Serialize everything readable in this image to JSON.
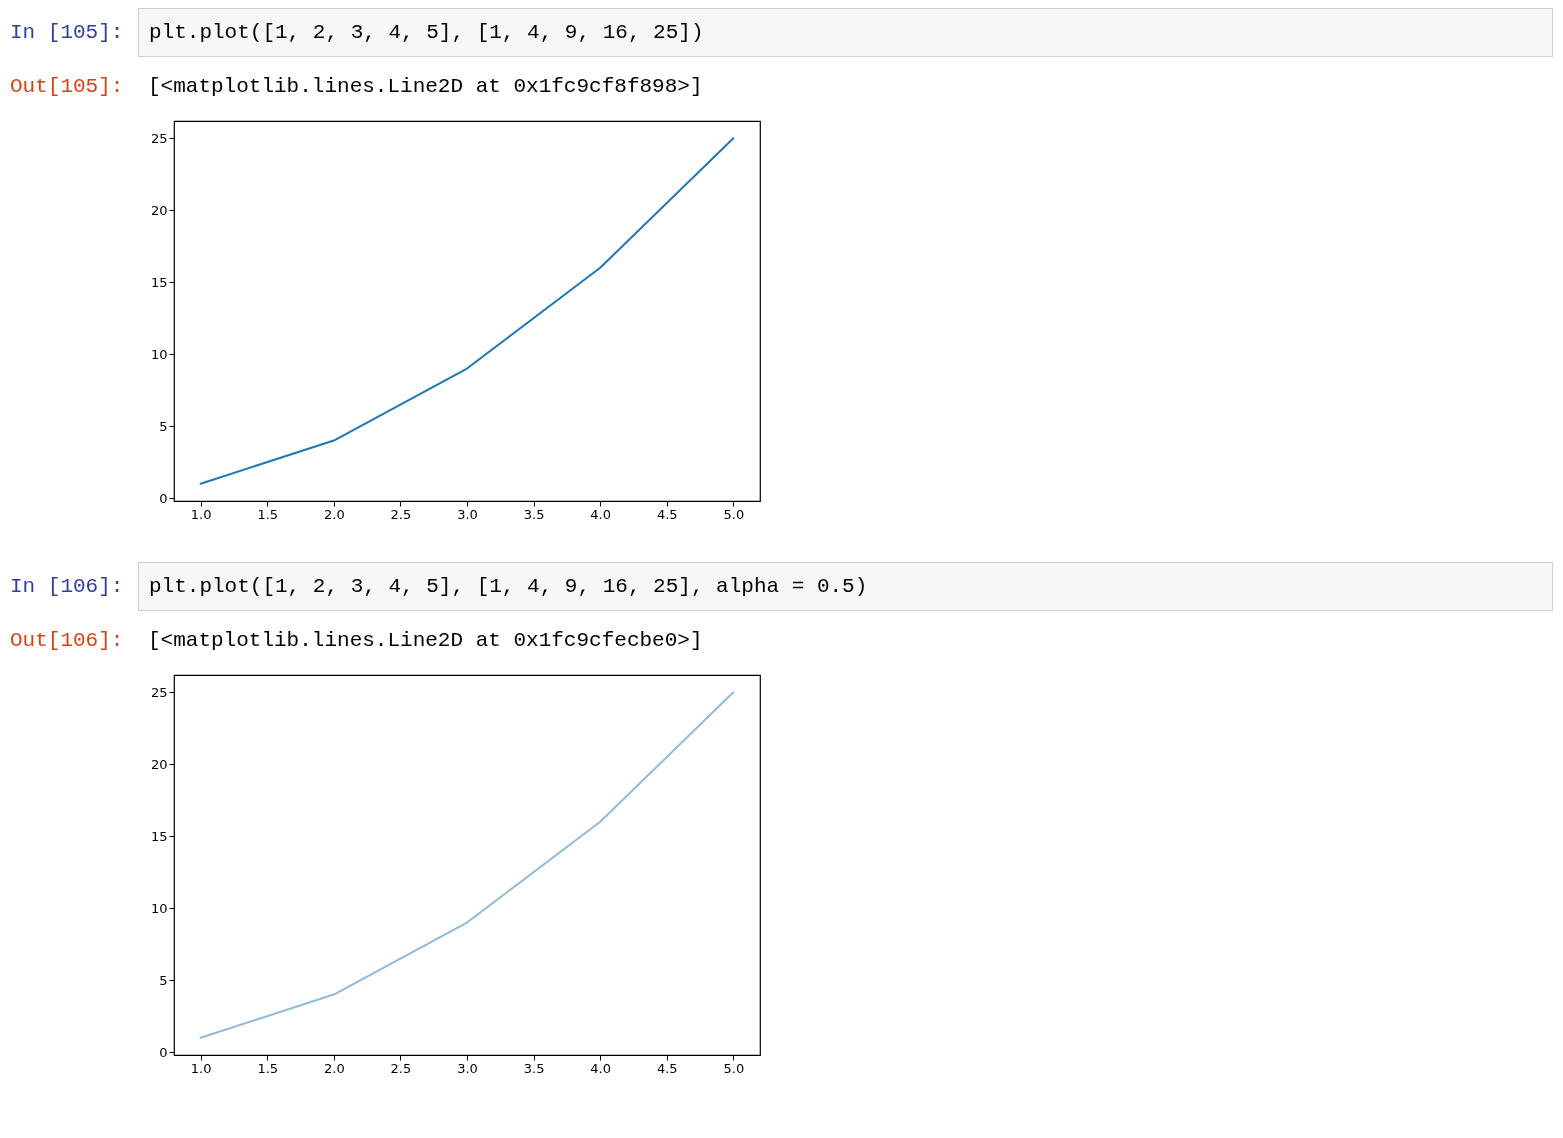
{
  "chart_data": [
    {
      "type": "line",
      "annotations": [
        "In [105]:",
        "plt.plot([1, 2, 3, 4, 5], [1, 4, 9, 16, 25])",
        "Out[105]:",
        "[<matplotlib.lines.Line2D at 0x1fc9cf8f898>]"
      ],
      "x": [
        1,
        2,
        3,
        4,
        5
      ],
      "series": [
        {
          "color": "#1f77b4",
          "values": [
            1,
            4,
            9,
            16,
            25
          ]
        }
      ],
      "xlim": [
        0.8,
        5.2
      ],
      "ylim": [
        -0.2,
        26.2
      ],
      "xticks": [
        {
          "value": 1,
          "label": "1.0"
        },
        {
          "value": 1.5,
          "label": "1.5"
        },
        {
          "value": 2,
          "label": "2.0"
        },
        {
          "value": 2.5,
          "label": "2.5"
        },
        {
          "value": 3,
          "label": "3.0"
        },
        {
          "value": 3.5,
          "label": "3.5"
        },
        {
          "value": 4,
          "label": "4.0"
        },
        {
          "value": 4.5,
          "label": "4.5"
        },
        {
          "value": 5,
          "label": "5.0"
        }
      ],
      "yticks": [
        0,
        5,
        10,
        15,
        20,
        25
      ],
      "grid": false,
      "marker": "none",
      "line_style": "solid"
    },
    {
      "type": "line",
      "annotations": [
        "In [106]:",
        "plt.plot([1, 2, 3, 4, 5], [1, 4, 9, 16, 25], alpha = 0.5)",
        "Out[106]:",
        "[<matplotlib.lines.Line2D at 0x1fc9cfecbe0>]"
      ],
      "x": [
        1,
        2,
        3,
        4,
        5
      ],
      "series": [
        {
          "color": "#8fbbd9",
          "values": [
            1,
            4,
            9,
            16,
            25
          ]
        }
      ],
      "xlim": [
        0.8,
        5.2
      ],
      "ylim": [
        -0.2,
        26.2
      ],
      "xticks": [
        {
          "value": 1,
          "label": "1.0"
        },
        {
          "value": 1.5,
          "label": "1.5"
        },
        {
          "value": 2,
          "label": "2.0"
        },
        {
          "value": 2.5,
          "label": "2.5"
        },
        {
          "value": 3,
          "label": "3.0"
        },
        {
          "value": 3.5,
          "label": "3.5"
        },
        {
          "value": 4,
          "label": "4.0"
        },
        {
          "value": 4.5,
          "label": "4.5"
        },
        {
          "value": 5,
          "label": "5.0"
        }
      ],
      "yticks": [
        0,
        5,
        10,
        15,
        20,
        25
      ],
      "grid": false,
      "marker": "none",
      "line_style": "solid"
    }
  ]
}
